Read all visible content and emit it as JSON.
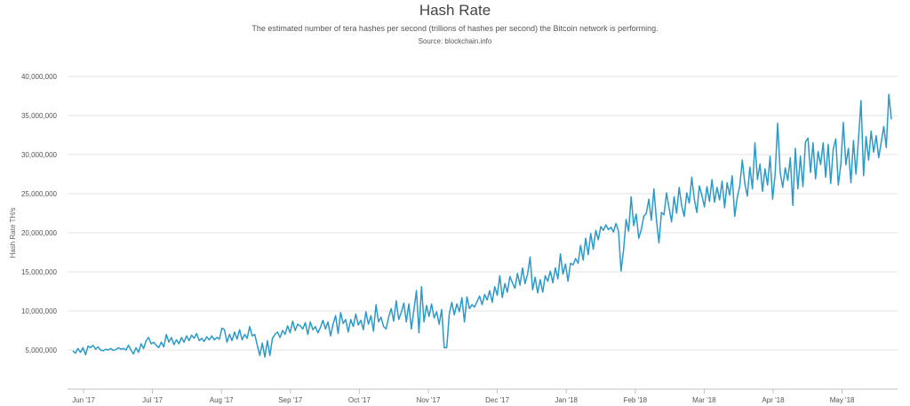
{
  "chart_data": {
    "type": "line",
    "title": "Hash Rate",
    "subtitle": "The estimated number of tera hashes per second (trillions of hashes per second) the Bitcoin network is performing.",
    "source": "Source: blockchain.info",
    "ylabel": "Hash Rate TH/s",
    "ylim": [
      0,
      40000000
    ],
    "yticks": [
      5000000,
      10000000,
      15000000,
      20000000,
      25000000,
      30000000,
      35000000,
      40000000
    ],
    "ytick_labels": [
      "5,000,000",
      "10,000,000",
      "15,000,000",
      "20,000,000",
      "25,000,000",
      "30,000,000",
      "35,000,000",
      "40,000,000"
    ],
    "xticks": [
      "Jun '17",
      "Jul '17",
      "Aug '17",
      "Sep '17",
      "Oct '17",
      "Nov '17",
      "Dec '17",
      "Jan '18",
      "Feb '18",
      "Mar '18",
      "Apr '18",
      "May '18"
    ],
    "grid": true,
    "color": "#2b9ac9",
    "series": [
      {
        "values": [
          4900000,
          4600000,
          5200000,
          4700000,
          5300000,
          4400000,
          5500000,
          5300000,
          5600000,
          5100000,
          5400000,
          5000000,
          4900000,
          5100000,
          5000000,
          5200000,
          4950000,
          5050000,
          5300000,
          5100000,
          5200000,
          5000000,
          5600000,
          5000000,
          4500000,
          5300000,
          4700000,
          5800000,
          5200000,
          6200000,
          6600000,
          5800000,
          6000000,
          5600000,
          5300000,
          6000000,
          5400000,
          7000000,
          6000000,
          6600000,
          5700000,
          6300000,
          5800000,
          6600000,
          6000000,
          6800000,
          6200000,
          6900000,
          6500000,
          7100000,
          6200000,
          6500000,
          6100000,
          6700000,
          6300000,
          6800000,
          6300000,
          6600000,
          6400000,
          7800000,
          7600000,
          6000000,
          7000000,
          6200000,
          7300000,
          6400000,
          7600000,
          6300000,
          7000000,
          6500000,
          8000000,
          6800000,
          7000000,
          5600000,
          4300000,
          5900000,
          4100000,
          6200000,
          4300000,
          6500000,
          7000000,
          7300000,
          6600000,
          7500000,
          7000000,
          8100000,
          7200000,
          8700000,
          7500000,
          8300000,
          8100000,
          7700000,
          8500000,
          7000000,
          8600000,
          7600000,
          8000000,
          7200000,
          7900000,
          8800000,
          7700000,
          8600000,
          6800000,
          8300000,
          9400000,
          7100000,
          9800000,
          8400000,
          8900000,
          7300000,
          8900000,
          8000000,
          9600000,
          8200000,
          8800000,
          7600000,
          9900000,
          8300000,
          9400000,
          7400000,
          10800000,
          8600000,
          9200000,
          8000000,
          7700000,
          9200000,
          10300000,
          8700000,
          11300000,
          8900000,
          9800000,
          11000000,
          8600000,
          10900000,
          7700000,
          10100000,
          12600000,
          7200000,
          13100000,
          8600000,
          10700000,
          9300000,
          10900000,
          9100000,
          9900000,
          8300000,
          10200000,
          5300000,
          5300000,
          9600000,
          11100000,
          9500000,
          10900000,
          9900000,
          11700000,
          8600000,
          11800000,
          10300000,
          10800000,
          10500000,
          11200000,
          11900000,
          10800000,
          12100000,
          11400000,
          12600000,
          11100000,
          13100000,
          12000000,
          14500000,
          11700000,
          13500000,
          12400000,
          14400000,
          13600000,
          12900000,
          14800000,
          13300000,
          15500000,
          13500000,
          14700000,
          16900000,
          12700000,
          14300000,
          12300000,
          14000000,
          12400000,
          14500000,
          13800000,
          15100000,
          13600000,
          15500000,
          14100000,
          17300000,
          14700000,
          16000000,
          13800000,
          16100000,
          15900000,
          16700000,
          16100000,
          18400000,
          16500000,
          19300000,
          17200000,
          19900000,
          17900000,
          20300000,
          19100000,
          20800000,
          20300000,
          21000000,
          20400000,
          20700000,
          20100000,
          21200000,
          20200000,
          15100000,
          17800000,
          21700000,
          20200000,
          24600000,
          20900000,
          22400000,
          19300000,
          20400000,
          22100000,
          22500000,
          24300000,
          21600000,
          25600000,
          21700000,
          18700000,
          22600000,
          22300000,
          25100000,
          23200000,
          21400000,
          24600000,
          22500000,
          25800000,
          23500000,
          22100000,
          25100000,
          23800000,
          27100000,
          24300000,
          22600000,
          26000000,
          24800000,
          23300000,
          25900000,
          24000000,
          26800000,
          23900000,
          25800000,
          24200000,
          26600000,
          23200000,
          26400000,
          24800000,
          27300000,
          22100000,
          24500000,
          26000000,
          29300000,
          26300000,
          24700000,
          28400000,
          25600000,
          31500000,
          26800000,
          28800000,
          25300000,
          28200000,
          26100000,
          29800000,
          24300000,
          27500000,
          34000000,
          27700000,
          25800000,
          28300000,
          26700000,
          29600000,
          23500000,
          30800000,
          25600000,
          29800000,
          25900000,
          31600000,
          32100000,
          27700000,
          31500000,
          26900000,
          30400000,
          28700000,
          31500000,
          27100000,
          31300000,
          26300000,
          30700000,
          32000000,
          26100000,
          28700000,
          34100000,
          28700000,
          30800000,
          26400000,
          31800000,
          27500000,
          32000000,
          36900000,
          27300000,
          32300000,
          29300000,
          33000000,
          30300000,
          32400000,
          29600000,
          31600000,
          33600000,
          30900000,
          37700000,
          34500000
        ]
      }
    ]
  }
}
